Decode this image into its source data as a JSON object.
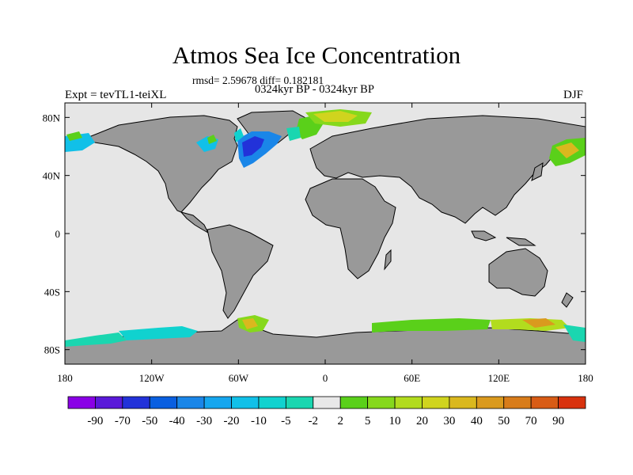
{
  "figure": {
    "title": "Atmos Sea Ice Concentration",
    "stats": "rmsd= 2.59678 diff= 0.182181",
    "period": "0324kyr BP - 0324kyr BP",
    "experiment": "Expt = tevTL1-teiXL",
    "season": "DJF"
  },
  "map": {
    "projection": "cylindrical-equidistant",
    "lon_range": [
      -180,
      180
    ],
    "lat_range": [
      -90,
      90
    ],
    "ocean_color": "#e6e6e6",
    "land_color": "#999999",
    "x_ticks": [
      "180",
      "120W",
      "60W",
      "0",
      "60E",
      "120E",
      "180"
    ],
    "y_ticks": [
      "80N",
      "40N",
      "0",
      "40S",
      "80S"
    ]
  },
  "colorbar": {
    "labels": [
      "-90",
      "-70",
      "-50",
      "-40",
      "-30",
      "-20",
      "-10",
      "-5",
      "-2",
      "2",
      "5",
      "10",
      "20",
      "30",
      "40",
      "50",
      "70",
      "90"
    ],
    "colors": [
      "#8a00e6",
      "#5a19d9",
      "#2232d9",
      "#0a5fe0",
      "#1a86e8",
      "#16a6ee",
      "#11c0e8",
      "#10d2cf",
      "#1ad6b0",
      "#e8e8e8",
      "#5ad01a",
      "#86d81c",
      "#b2dc1e",
      "#d0d41e",
      "#dab81e",
      "#da9a1e",
      "#d87c1a",
      "#d85c16",
      "#d8320e"
    ]
  }
}
